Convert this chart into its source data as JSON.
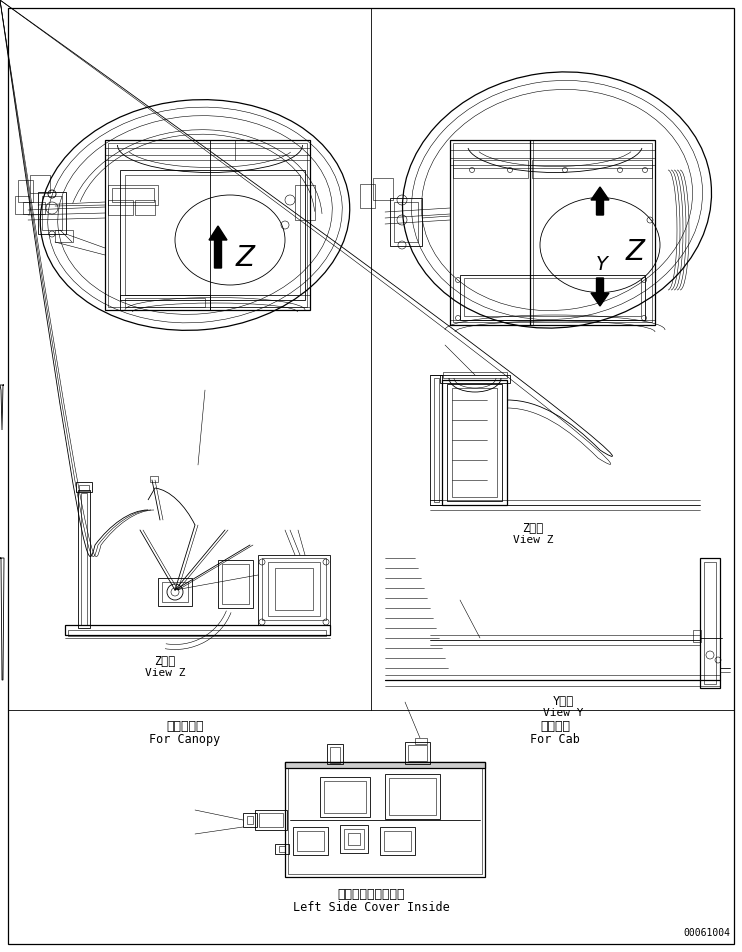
{
  "bg_color": "#ffffff",
  "line_color": "#000000",
  "fig_width": 7.42,
  "fig_height": 9.52,
  "label_for_canopy_ja": "キャノピ用",
  "label_for_canopy_en": "For Canopy",
  "label_for_cab_ja": "キャブ用",
  "label_for_cab_en": "For Cab",
  "label_view_z_ja": "Z　視",
  "label_view_z_en": "View Z",
  "label_view_y_ja": "Y　視",
  "label_view_y_en": "View Y",
  "label_bottom_ja": "左サイドカバー内側",
  "label_bottom_en": "Left Side Cover Inside",
  "part_number": "00061004"
}
